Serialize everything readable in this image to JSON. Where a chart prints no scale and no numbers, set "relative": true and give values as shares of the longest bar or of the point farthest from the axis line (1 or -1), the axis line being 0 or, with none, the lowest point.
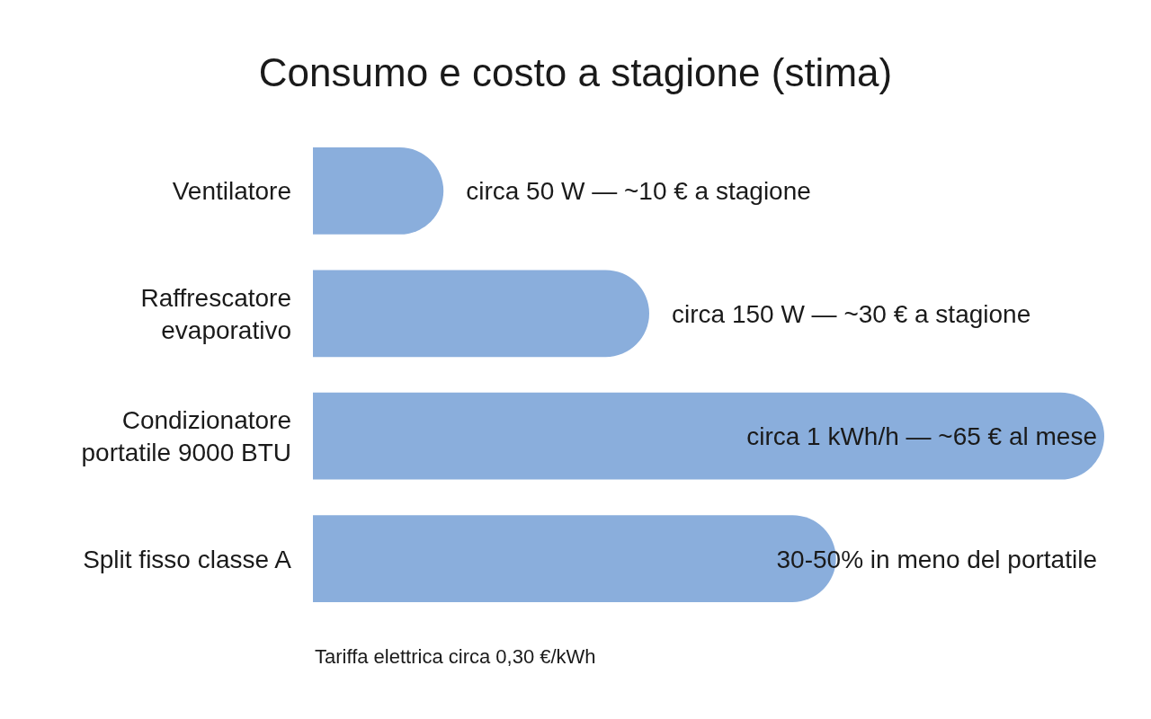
{
  "chart_data": {
    "type": "bar",
    "orientation": "horizontal",
    "relative": true,
    "title": "Consumo e costo a stagione (stima)",
    "categories": [
      "Ventilatore",
      "Raffrescatore evaporativo",
      "Condizionatore portatile 9000 BTU",
      "Split fisso classe A"
    ],
    "values": [
      0.165,
      0.425,
      1,
      0.661
    ],
    "color": "#8aaedc",
    "annotations": [
      "circa 50 W — ~10 € a stagione",
      "circa 150 W — ~30 € a stagione",
      "circa 1 kWh/h — ~65 € al mese",
      "30-50% in meno del portatile",
      "Tariffa elettrica circa 0,30 €/kWh"
    ]
  }
}
